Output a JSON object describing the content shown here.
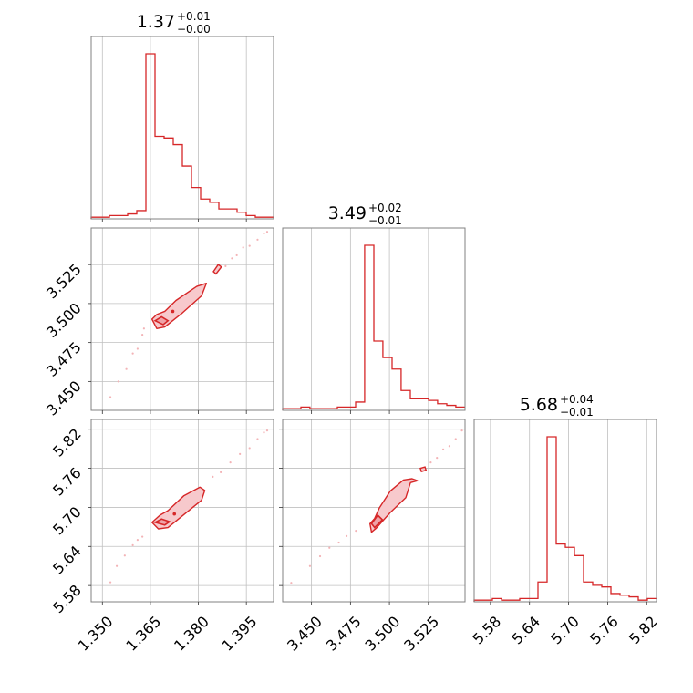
{
  "chart_data": {
    "type": "corner",
    "color": "#d62728",
    "fill_color": "#f7c9cc",
    "sample_color": "#f3b3b6",
    "grid": true,
    "parameters": [
      {
        "range": [
          1.3465,
          1.4035
        ],
        "ticks": [
          1.35,
          1.365,
          1.38,
          1.395
        ],
        "tick_labels": [
          "1.350",
          "1.365",
          "1.380",
          "1.395"
        ],
        "title": {
          "value": "1.37",
          "plus": "+0.01",
          "minus": "−0.00"
        },
        "hist": {
          "edges": [
            1.3465,
            1.34935,
            1.3522,
            1.35505,
            1.3579,
            1.36075,
            1.3636,
            1.36645,
            1.3693,
            1.37215,
            1.375,
            1.37785,
            1.3807,
            1.38355,
            1.3864,
            1.38925,
            1.3921,
            1.39495,
            1.3978,
            1.40065,
            1.4035
          ],
          "counts": [
            1,
            1,
            2,
            2,
            3,
            5,
            100,
            50,
            49,
            45,
            32,
            19,
            12,
            10,
            6,
            6,
            4,
            2,
            1,
            1
          ],
          "max": 100
        }
      },
      {
        "range": [
          3.4315,
          3.5485
        ],
        "ticks": [
          3.45,
          3.475,
          3.5,
          3.525
        ],
        "tick_labels": [
          "3.450",
          "3.475",
          "3.500",
          "3.525"
        ],
        "title": {
          "value": "3.49",
          "plus": "+0.02",
          "minus": "−0.01"
        },
        "hist": {
          "edges": [
            3.4315,
            3.4373,
            3.4432,
            3.449,
            3.4549,
            3.4607,
            3.4666,
            3.4724,
            3.4783,
            3.4841,
            3.49,
            3.4958,
            3.5017,
            3.5075,
            3.5134,
            3.5192,
            3.5251,
            3.5309,
            3.5368,
            3.5426,
            3.5485
          ],
          "counts": [
            1,
            1,
            2,
            1,
            1,
            1,
            2,
            2,
            5,
            100,
            42,
            32,
            25,
            12,
            7,
            7,
            6,
            4,
            3,
            2
          ],
          "max": 100
        }
      },
      {
        "range": [
          5.555,
          5.835
        ],
        "ticks": [
          5.58,
          5.64,
          5.7,
          5.76,
          5.82
        ],
        "tick_labels": [
          "5.58",
          "5.64",
          "5.70",
          "5.76",
          "5.82"
        ],
        "title": {
          "value": "5.68",
          "plus": "+0.04",
          "minus": "−0.01"
        },
        "hist": {
          "edges": [
            5.555,
            5.569,
            5.583,
            5.597,
            5.611,
            5.625,
            5.639,
            5.653,
            5.667,
            5.681,
            5.695,
            5.709,
            5.723,
            5.737,
            5.751,
            5.765,
            5.779,
            5.793,
            5.807,
            5.821,
            5.835
          ],
          "counts": [
            1,
            1,
            2,
            1,
            1,
            2,
            2,
            12,
            100,
            35,
            33,
            28,
            12,
            10,
            9,
            5,
            4,
            3,
            1,
            2
          ],
          "max": 100
        }
      }
    ],
    "pairs": [
      {
        "x": 0,
        "y": 1,
        "outer": [
          [
            1.3655,
            3.49
          ],
          [
            1.367,
            3.484
          ],
          [
            1.3695,
            3.485
          ],
          [
            1.375,
            3.494
          ],
          [
            1.381,
            3.505
          ],
          [
            1.3825,
            3.513
          ],
          [
            1.3795,
            3.511
          ],
          [
            1.373,
            3.502
          ],
          [
            1.3695,
            3.495
          ],
          [
            1.367,
            3.493
          ]
        ],
        "inner": [
          [
            1.3665,
            3.489
          ],
          [
            1.369,
            3.4865
          ],
          [
            1.3705,
            3.489
          ],
          [
            1.3685,
            3.4915
          ]
        ],
        "islands": [
          [
            [
              1.3855,
              3.519
            ],
            [
              1.3872,
              3.5235
            ],
            [
              1.3862,
              3.525
            ],
            [
              1.3847,
              3.5205
            ]
          ]
        ],
        "dots": [
          [
            1.372,
            3.495
          ]
        ],
        "samples": [
          [
            1.3525,
            3.44
          ],
          [
            1.355,
            3.45
          ],
          [
            1.3575,
            3.458
          ],
          [
            1.3595,
            3.468
          ],
          [
            1.361,
            3.471
          ],
          [
            1.3625,
            3.48
          ],
          [
            1.363,
            3.484
          ],
          [
            1.3885,
            3.524
          ],
          [
            1.3905,
            3.529
          ],
          [
            1.392,
            3.531
          ],
          [
            1.394,
            3.536
          ],
          [
            1.396,
            3.537
          ],
          [
            1.3985,
            3.541
          ],
          [
            1.4005,
            3.545
          ],
          [
            1.4015,
            3.546
          ]
        ]
      },
      {
        "x": 0,
        "y": 2,
        "outer": [
          [
            1.3655,
            5.677
          ],
          [
            1.3675,
            5.667
          ],
          [
            1.3705,
            5.669
          ],
          [
            1.3755,
            5.689
          ],
          [
            1.381,
            5.711
          ],
          [
            1.382,
            5.726
          ],
          [
            1.3805,
            5.731
          ],
          [
            1.3755,
            5.718
          ],
          [
            1.3705,
            5.695
          ],
          [
            1.368,
            5.688
          ]
        ],
        "inner": [
          [
            1.3665,
            5.677
          ],
          [
            1.3695,
            5.673
          ],
          [
            1.371,
            5.678
          ],
          [
            1.3685,
            5.682
          ]
        ],
        "islands": [],
        "dots": [
          [
            1.3725,
            5.69
          ]
        ],
        "samples": [
          [
            1.3525,
            5.585
          ],
          [
            1.3545,
            5.61
          ],
          [
            1.357,
            5.626
          ],
          [
            1.3595,
            5.642
          ],
          [
            1.361,
            5.65
          ],
          [
            1.3625,
            5.655
          ],
          [
            1.3845,
            5.747
          ],
          [
            1.387,
            5.754
          ],
          [
            1.39,
            5.769
          ],
          [
            1.393,
            5.782
          ],
          [
            1.396,
            5.791
          ],
          [
            1.3985,
            5.805
          ],
          [
            1.4005,
            5.815
          ],
          [
            1.4015,
            5.818
          ]
        ]
      },
      {
        "x": 1,
        "y": 2,
        "outer": [
          [
            3.4875,
            5.675
          ],
          [
            3.4885,
            5.662
          ],
          [
            3.4915,
            5.668
          ],
          [
            3.5005,
            5.692
          ],
          [
            3.5105,
            5.715
          ],
          [
            3.5135,
            5.738
          ],
          [
            3.518,
            5.741
          ],
          [
            3.5145,
            5.744
          ],
          [
            3.509,
            5.742
          ],
          [
            3.5005,
            5.725
          ],
          [
            3.4935,
            5.699
          ],
          [
            3.4905,
            5.683
          ]
        ],
        "inner": [
          [
            3.4885,
            5.675
          ],
          [
            3.4905,
            5.669
          ],
          [
            3.4955,
            5.681
          ],
          [
            3.4925,
            5.688
          ]
        ],
        "islands": [
          [
            [
              3.5205,
              5.755
            ],
            [
              3.5235,
              5.757
            ],
            [
              3.5228,
              5.762
            ],
            [
              3.5198,
              5.76
            ]
          ]
        ],
        "dots": [],
        "samples": [
          [
            3.437,
            5.584
          ],
          [
            3.449,
            5.61
          ],
          [
            3.4555,
            5.625
          ],
          [
            3.4615,
            5.638
          ],
          [
            3.4675,
            5.646
          ],
          [
            3.4725,
            5.656
          ],
          [
            3.4785,
            5.664
          ],
          [
            3.5265,
            5.769
          ],
          [
            3.5305,
            5.776
          ],
          [
            3.5345,
            5.789
          ],
          [
            3.5385,
            5.794
          ],
          [
            3.5425,
            5.805
          ],
          [
            3.5465,
            5.818
          ]
        ]
      }
    ]
  }
}
